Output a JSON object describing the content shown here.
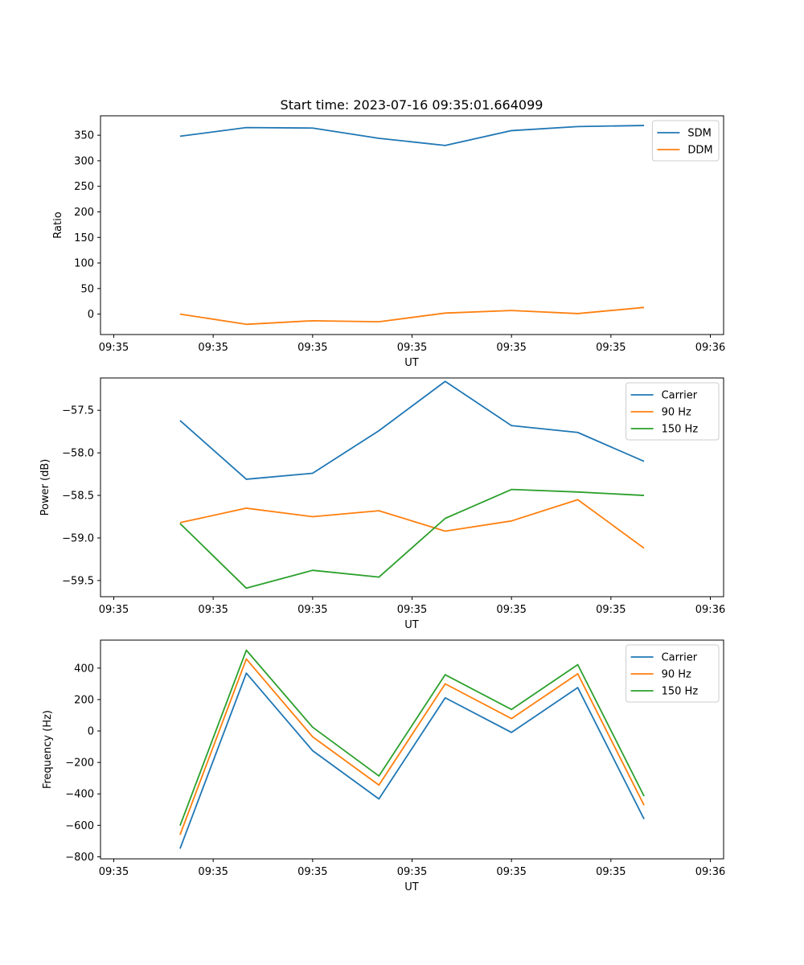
{
  "figure_title": "Start time: 2023-07-16 09:35:01.664099",
  "colors": {
    "blue": "#1f77b4",
    "orange": "#ff7f0e",
    "green": "#2ca02c"
  },
  "chart_data": [
    {
      "type": "line",
      "title": "Start time: 2023-07-16 09:35:01.664099",
      "xlabel": "UT",
      "ylabel": "Ratio",
      "x": [
        1,
        2,
        3,
        4,
        5,
        6,
        7,
        8
      ],
      "xlim": [
        -0.2,
        9.2
      ],
      "xticks": [
        0,
        1.5,
        3,
        4.5,
        6,
        7.5,
        9
      ],
      "xticklabels": [
        "09:35",
        "09:35",
        "09:35",
        "09:35",
        "09:35",
        "09:35",
        "09:36"
      ],
      "ylim": [
        -40,
        388
      ],
      "yticks": [
        0,
        50,
        100,
        150,
        200,
        250,
        300,
        350
      ],
      "yticklabels": [
        "0",
        "50",
        "100",
        "150",
        "200",
        "250",
        "300",
        "350"
      ],
      "legend_position": "top-right",
      "series": [
        {
          "name": "SDM",
          "color": "#1f77b4",
          "values": [
            348,
            365,
            364,
            344,
            330,
            359,
            367,
            369
          ]
        },
        {
          "name": "DDM",
          "color": "#ff7f0e",
          "values": [
            0,
            -20,
            -13,
            -15,
            2,
            7,
            1,
            13
          ]
        }
      ]
    },
    {
      "type": "line",
      "title": "",
      "xlabel": "UT",
      "ylabel": "Power (dB)",
      "x": [
        1,
        2,
        3,
        4,
        5,
        6,
        7,
        8
      ],
      "xlim": [
        -0.2,
        9.2
      ],
      "xticks": [
        0,
        1.5,
        3,
        4.5,
        6,
        7.5,
        9
      ],
      "xticklabels": [
        "09:35",
        "09:35",
        "09:35",
        "09:35",
        "09:35",
        "09:35",
        "09:36"
      ],
      "ylim": [
        -59.69,
        -57.12
      ],
      "yticks": [
        -59.5,
        -59.0,
        -58.5,
        -58.0,
        -57.5
      ],
      "yticklabels": [
        "−59.5",
        "−59.0",
        "−58.5",
        "−58.0",
        "−57.5"
      ],
      "legend_position": "top-right",
      "series": [
        {
          "name": "Carrier",
          "color": "#1f77b4",
          "values": [
            -57.62,
            -58.31,
            -58.24,
            -57.74,
            -57.16,
            -57.68,
            -57.76,
            -58.1
          ]
        },
        {
          "name": "90 Hz",
          "color": "#ff7f0e",
          "values": [
            -58.82,
            -58.65,
            -58.75,
            -58.68,
            -58.92,
            -58.8,
            -58.55,
            -59.12
          ]
        },
        {
          "name": "150 Hz",
          "color": "#2ca02c",
          "values": [
            -58.83,
            -59.59,
            -59.38,
            -59.46,
            -58.77,
            -58.43,
            -58.46,
            -58.5
          ]
        }
      ]
    },
    {
      "type": "line",
      "title": "",
      "xlabel": "UT",
      "ylabel": "Frequency (Hz)",
      "x": [
        1,
        2,
        3,
        4,
        5,
        6,
        7,
        8
      ],
      "xlim": [
        -0.2,
        9.2
      ],
      "xticks": [
        0,
        1.5,
        3,
        4.5,
        6,
        7.5,
        9
      ],
      "xticklabels": [
        "09:35",
        "09:35",
        "09:35",
        "09:35",
        "09:35",
        "09:35",
        "09:36"
      ],
      "ylim": [
        -813,
        578
      ],
      "yticks": [
        -800,
        -600,
        -400,
        -200,
        0,
        200,
        400
      ],
      "yticklabels": [
        "−800",
        "−600",
        "−400",
        "−200",
        "0",
        "200",
        "400"
      ],
      "legend_position": "top-right",
      "series": [
        {
          "name": "Carrier",
          "color": "#1f77b4",
          "values": [
            -748,
            368,
            -125,
            -432,
            211,
            -9,
            276,
            -560
          ]
        },
        {
          "name": "90 Hz",
          "color": "#ff7f0e",
          "values": [
            -660,
            458,
            -37,
            -344,
            300,
            79,
            364,
            -472
          ]
        },
        {
          "name": "150 Hz",
          "color": "#2ca02c",
          "values": [
            -602,
            514,
            24,
            -286,
            358,
            137,
            422,
            -414
          ]
        }
      ]
    }
  ]
}
